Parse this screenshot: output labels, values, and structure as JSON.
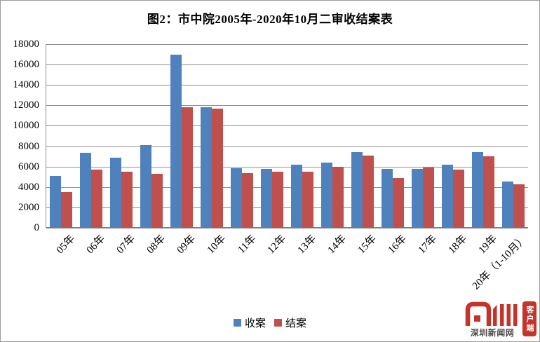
{
  "chart_data": {
    "type": "bar",
    "title": "图2：市中院2005年-2020年10月二审收结案表",
    "categories": [
      "05年",
      "06年",
      "07年",
      "08年",
      "09年",
      "10年",
      "11年",
      "12年",
      "13年",
      "14年",
      "15年",
      "16年",
      "17年",
      "18年",
      "19年",
      "20年（1-10月）"
    ],
    "series": [
      {
        "name": "收案",
        "color": "#4F81BD",
        "values": [
          5100,
          7350,
          6900,
          8100,
          17000,
          11850,
          5850,
          5750,
          6150,
          6400,
          7400,
          5750,
          5750,
          6150,
          7450,
          4550
        ]
      },
      {
        "name": "结案",
        "color": "#C0504D",
        "values": [
          3500,
          5700,
          5500,
          5300,
          11800,
          11700,
          5350,
          5500,
          5500,
          5950,
          7050,
          4850,
          5900,
          5700,
          7000,
          4250
        ]
      }
    ],
    "xlabel": "",
    "ylabel": "",
    "ylim": [
      0,
      18000
    ],
    "ytick_step": 2000,
    "yticks": [
      0,
      2000,
      4000,
      6000,
      8000,
      10000,
      12000,
      14000,
      16000,
      18000
    ],
    "grid": "horizontal",
    "gridline_color": "#8f8f8f",
    "axis_color": "#7f7f7f",
    "legend_position": "bottom-center"
  },
  "watermark": {
    "logo_glyphs": "见圳",
    "client_badge": "客户端",
    "site_name": "深圳新闻网",
    "brand_red": "#C5342B",
    "text_dark": "#4A4642"
  }
}
